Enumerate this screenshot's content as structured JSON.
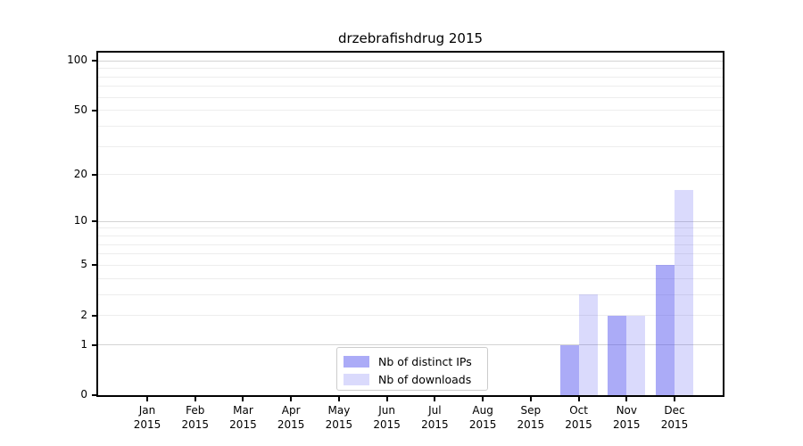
{
  "page": {
    "background": "#ffffff"
  },
  "chart_data": {
    "type": "bar",
    "title": "drzebrafishdrug 2015",
    "categories": [
      "Jan 2015",
      "Feb 2015",
      "Mar 2015",
      "Apr 2015",
      "May 2015",
      "Jun 2015",
      "Jul 2015",
      "Aug 2015",
      "Sep 2015",
      "Oct 2015",
      "Nov 2015",
      "Dec 2015"
    ],
    "series": [
      {
        "name": "Nb of distinct IPs",
        "color": "rgba(68,68,238,0.45)",
        "values": [
          0,
          0,
          0,
          0,
          0,
          0,
          0,
          0,
          0,
          1,
          2,
          5
        ]
      },
      {
        "name": "Nb of downloads",
        "color": "rgba(68,68,238,0.20)",
        "values": [
          0,
          0,
          0,
          0,
          0,
          0,
          0,
          0,
          0,
          3,
          2,
          16
        ]
      }
    ],
    "xlabel": "",
    "ylabel": "",
    "yscale": "log1p",
    "ylim": [
      0,
      112
    ],
    "yticks": [
      0,
      1,
      2,
      5,
      10,
      20,
      50,
      100
    ],
    "grid": {
      "minor_values": [
        2,
        3,
        4,
        5,
        6,
        7,
        8,
        9,
        20,
        30,
        40,
        50,
        60,
        70,
        80,
        90
      ],
      "major_values": [
        1,
        10,
        100
      ],
      "minor_color": "#ededed",
      "major_color": "#d4d4d4"
    },
    "legend": {
      "position": "bottom-center",
      "border_color": "#cccccc"
    },
    "spine_color": "#000000"
  }
}
